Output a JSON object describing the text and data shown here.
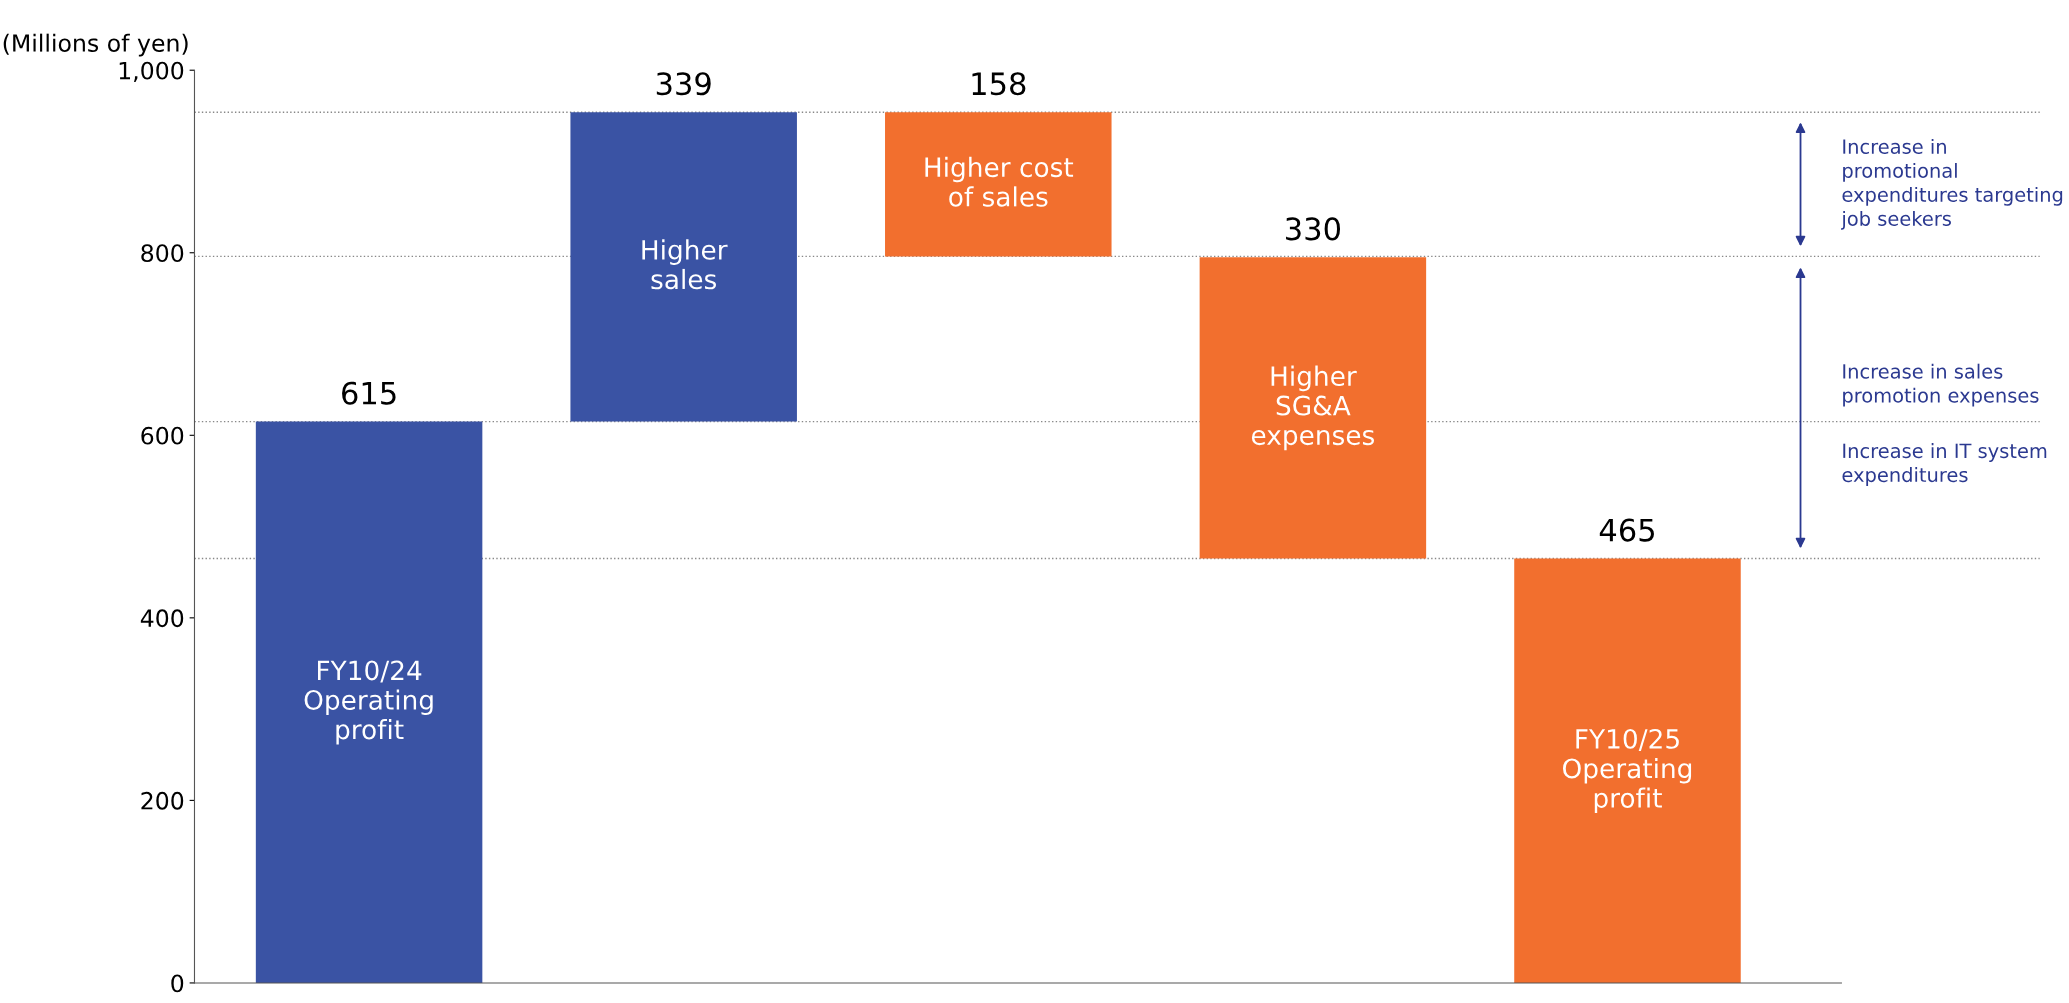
{
  "chart_data": {
    "type": "bar",
    "ylabel": "(Millions of yen)",
    "categories": [
      "FY10/24\nOperating\nprofit",
      "Higher\nsales",
      "Higher cost\nof sales",
      "Higher\nSG&A\nexpenses",
      "FY10/25\nOperating\nprofit"
    ],
    "values": [
      615,
      339,
      158,
      330,
      465
    ],
    "base": [
      0,
      615,
      796,
      465,
      0
    ],
    "colors": [
      "#3a53a4",
      "#3a53a4",
      "#f26f2e",
      "#f26f2e",
      "#f26f2e"
    ],
    "data_labels": true,
    "ylim": [
      0,
      1000
    ],
    "yticks": [
      0,
      200,
      400,
      600,
      800,
      {
        "value": 1000,
        "label": "1,000"
      }
    ],
    "grid": false,
    "ref_lines": [
      {
        "axis": "y",
        "value": 615,
        "color": "#888888",
        "line_style": "dotted"
      },
      {
        "axis": "y",
        "value": 954,
        "color": "#888888",
        "line_style": "dotted"
      },
      {
        "axis": "y",
        "value": 796,
        "color": "#888888",
        "line_style": "dotted"
      },
      {
        "axis": "y",
        "value": 465,
        "color": "#888888",
        "line_style": "dotted"
      }
    ],
    "annotations": [
      "Increase in\npromotional\nexpenditures targeting\njob seekers",
      "Increase in sales\npromotion expenses",
      "Increase in IT system\nexpenditures"
    ]
  }
}
